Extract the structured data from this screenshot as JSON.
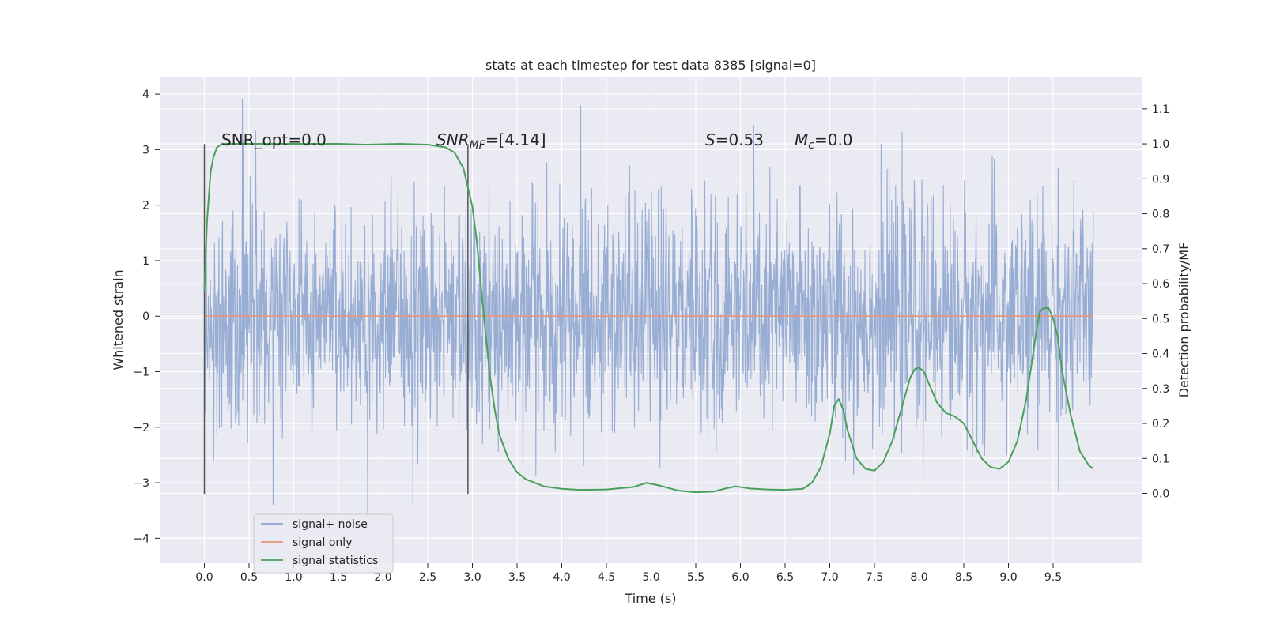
{
  "chart_data": {
    "type": "line",
    "title": "stats at each timestep for test data 8385 [signal=0]",
    "xlabel": "Time (s)",
    "ylabel_left": "Whitened strain",
    "ylabel_right": "Detection probability/MF",
    "xlim": [
      -0.5,
      10.5
    ],
    "ylim_left": [
      -4.45,
      4.3
    ],
    "ylim_right": [
      -0.2,
      1.19
    ],
    "x_ticks": [
      0.0,
      0.5,
      1.0,
      1.5,
      2.0,
      2.5,
      3.0,
      3.5,
      4.0,
      4.5,
      5.0,
      5.5,
      6.0,
      6.5,
      7.0,
      7.5,
      8.0,
      8.5,
      9.0,
      9.5
    ],
    "x_tick_labels": [
      "0.0",
      "0.5",
      "1.0",
      "1.5",
      "2.0",
      "2.5",
      "3.0",
      "3.5",
      "4.0",
      "4.5",
      "5.0",
      "5.5",
      "6.0",
      "6.5",
      "7.0",
      "7.5",
      "8.0",
      "8.5",
      "9.0",
      "9.5"
    ],
    "y_left_ticks": [
      4,
      3,
      2,
      1,
      0,
      -1,
      -2,
      -3,
      -4
    ],
    "y_left_tick_labels": [
      "4",
      "3",
      "2",
      "1",
      "0",
      "−1",
      "−2",
      "−3",
      "−4"
    ],
    "y_right_ticks": [
      1.1,
      1.0,
      0.9,
      0.8,
      0.7,
      0.6,
      0.5,
      0.4,
      0.3,
      0.2,
      0.1,
      0.0
    ],
    "y_right_tick_labels": [
      "1.1",
      "1.0",
      "0.9",
      "0.8",
      "0.7",
      "0.6",
      "0.5",
      "0.4",
      "0.3",
      "0.2",
      "0.1",
      "0.0"
    ],
    "grid": true,
    "legend_position": "lower-left",
    "series": [
      {
        "name": "signal+ noise",
        "axis": "left",
        "style": "dense noise trace",
        "color": "#8fa6cf",
        "x_range": [
          0.0,
          9.95
        ],
        "approx_envelope": {
          "typical_max": 2.5,
          "typical_min": -2.6,
          "peak_max": 3.95,
          "peak_min": -4.05
        }
      },
      {
        "name": "signal only",
        "axis": "left",
        "color": "#e9967a",
        "x": [
          0.0,
          9.95
        ],
        "y": [
          0.0,
          0.0
        ]
      },
      {
        "name": "signal statistics",
        "axis": "right",
        "color": "#4aa05a",
        "x": [
          0.0,
          0.03,
          0.07,
          0.1,
          0.14,
          0.2,
          0.3,
          0.5,
          1.0,
          1.5,
          1.8,
          2.2,
          2.5,
          2.7,
          2.8,
          2.9,
          3.0,
          3.05,
          3.1,
          3.15,
          3.2,
          3.25,
          3.3,
          3.4,
          3.5,
          3.6,
          3.7,
          3.8,
          4.0,
          4.2,
          4.5,
          4.8,
          4.95,
          5.1,
          5.3,
          5.5,
          5.7,
          5.85,
          5.95,
          6.1,
          6.3,
          6.5,
          6.7,
          6.8,
          6.9,
          7.0,
          7.05,
          7.1,
          7.15,
          7.2,
          7.3,
          7.4,
          7.5,
          7.6,
          7.7,
          7.8,
          7.9,
          7.95,
          8.0,
          8.05,
          8.1,
          8.2,
          8.3,
          8.4,
          8.5,
          8.6,
          8.7,
          8.8,
          8.9,
          9.0,
          9.1,
          9.2,
          9.3,
          9.35,
          9.4,
          9.45,
          9.5,
          9.55,
          9.6,
          9.7,
          9.8,
          9.9,
          9.95
        ],
        "y": [
          0.58,
          0.78,
          0.92,
          0.96,
          0.99,
          1.0,
          1.0,
          1.0,
          1.0,
          1.0,
          0.998,
          1.0,
          0.998,
          0.99,
          0.975,
          0.93,
          0.82,
          0.72,
          0.58,
          0.45,
          0.33,
          0.24,
          0.17,
          0.1,
          0.06,
          0.04,
          0.03,
          0.02,
          0.013,
          0.01,
          0.011,
          0.018,
          0.03,
          0.022,
          0.008,
          0.003,
          0.005,
          0.015,
          0.02,
          0.014,
          0.011,
          0.01,
          0.013,
          0.03,
          0.075,
          0.17,
          0.25,
          0.27,
          0.24,
          0.18,
          0.1,
          0.07,
          0.065,
          0.09,
          0.15,
          0.24,
          0.33,
          0.355,
          0.36,
          0.35,
          0.32,
          0.26,
          0.23,
          0.22,
          0.2,
          0.15,
          0.1,
          0.075,
          0.07,
          0.09,
          0.15,
          0.27,
          0.44,
          0.52,
          0.53,
          0.53,
          0.5,
          0.45,
          0.35,
          0.22,
          0.12,
          0.08,
          0.07
        ]
      }
    ],
    "vertical_lines": [
      {
        "x": 0.0,
        "y_range": [
          -3.2,
          3.1
        ]
      },
      {
        "x": 2.95,
        "y_range": [
          -3.2,
          3.1
        ]
      }
    ],
    "annotations": [
      {
        "id": "snr_opt",
        "x": 0.2,
        "y": 3.2,
        "text": "SNR_opt=0.0"
      },
      {
        "id": "snr_mf",
        "x": 2.6,
        "y": 3.2,
        "text_main": "SNR",
        "text_sub": "MF",
        "text_after": "=[4.14]"
      },
      {
        "id": "s_stat",
        "x": 5.6,
        "y": 3.2,
        "text_main": "S",
        "text_after": "=0.53"
      },
      {
        "id": "mc",
        "x": 6.6,
        "y": 3.2,
        "text_main": "M",
        "text_sub": "c",
        "text_after": "=0.0"
      }
    ],
    "colors": {
      "axes_bg": "#eaeaf2",
      "grid": "#ffffff",
      "vline": "#555555"
    }
  }
}
